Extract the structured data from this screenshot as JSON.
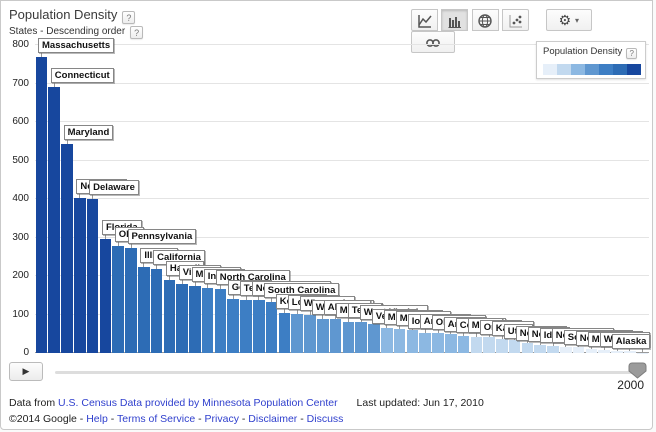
{
  "ui": {
    "help": "?"
  },
  "header": {
    "title": "Population Density",
    "subtitle": "States - Descending order"
  },
  "toolbar": {
    "chart_type_buttons": [
      {
        "id": "line-chart",
        "active": false
      },
      {
        "id": "bar-chart",
        "active": true
      },
      {
        "id": "map-chart",
        "active": false
      },
      {
        "id": "scatter-chart",
        "active": false
      }
    ],
    "gear_icon": "⚙",
    "caret_icon": "▾",
    "link_icon": "chain"
  },
  "legend": {
    "title": "Population Density",
    "colors": [
      "#e6eff9",
      "#c2d9ef",
      "#8cb8e2",
      "#5f97d0",
      "#3d7ec4",
      "#2d6cb5",
      "#17479e"
    ]
  },
  "chart_data": {
    "type": "bar",
    "title": "Population Density",
    "subtitle": "States - Descending order",
    "year": "2000",
    "xlabel": "",
    "ylabel": "",
    "ylim": [
      0,
      800
    ],
    "yticks": [
      0,
      100,
      200,
      300,
      400,
      500,
      600,
      700,
      800
    ],
    "grid": true,
    "legend_position": "top-right",
    "bars": [
      {
        "state": "Massachusetts",
        "value": 770,
        "color": "#17479e"
      },
      {
        "state": "Connecticut",
        "value": 690,
        "color": "#17479e"
      },
      {
        "state": "Maryland",
        "value": 542,
        "color": "#17479e"
      },
      {
        "state": "New York",
        "value": 402,
        "color": "#17479e"
      },
      {
        "state": "Delaware",
        "value": 401,
        "color": "#17479e"
      },
      {
        "state": "Florida",
        "value": 296,
        "color": "#17479e"
      },
      {
        "state": "Ohio",
        "value": 277,
        "color": "#2d6cb5"
      },
      {
        "state": "Pennsylvania",
        "value": 274,
        "color": "#2d6cb5"
      },
      {
        "state": "Illinois",
        "value": 223,
        "color": "#2d6cb5"
      },
      {
        "state": "California",
        "value": 217,
        "color": "#2d6cb5"
      },
      {
        "state": "Hawaii",
        "value": 189,
        "color": "#2d6cb5"
      },
      {
        "state": "Virginia",
        "value": 179,
        "color": "#2d6cb5"
      },
      {
        "state": "Michigan",
        "value": 175,
        "color": "#2d6cb5"
      },
      {
        "state": "Indiana",
        "value": 170,
        "color": "#3d7ec4"
      },
      {
        "state": "North Carolina",
        "value": 165,
        "color": "#3d7ec4"
      },
      {
        "state": "Georgia",
        "value": 141,
        "color": "#3d7ec4"
      },
      {
        "state": "Tennessee",
        "value": 138,
        "color": "#3d7ec4"
      },
      {
        "state": "New Hampshire",
        "value": 137,
        "color": "#3d7ec4"
      },
      {
        "state": "South Carolina",
        "value": 133,
        "color": "#3d7ec4"
      },
      {
        "state": "Kentucky",
        "value": 103,
        "color": "#3d7ec4"
      },
      {
        "state": "Louisiana",
        "value": 102,
        "color": "#5f97d0"
      },
      {
        "state": "Wisconsin",
        "value": 99,
        "color": "#5f97d0"
      },
      {
        "state": "Washington",
        "value": 89,
        "color": "#5f97d0"
      },
      {
        "state": "Alabama",
        "value": 88,
        "color": "#5f97d0"
      },
      {
        "state": "Missouri",
        "value": 81,
        "color": "#5f97d0"
      },
      {
        "state": "Texas",
        "value": 80,
        "color": "#5f97d0"
      },
      {
        "state": "West Virginia",
        "value": 75,
        "color": "#5f97d0"
      },
      {
        "state": "Vermont",
        "value": 66,
        "color": "#8cb8e2"
      },
      {
        "state": "Mississippi",
        "value": 62,
        "color": "#8cb8e2"
      },
      {
        "state": "Minnesota",
        "value": 61,
        "color": "#8cb8e2"
      },
      {
        "state": "Iowa",
        "value": 52,
        "color": "#8cb8e2"
      },
      {
        "state": "Arkansas",
        "value": 51,
        "color": "#8cb8e2"
      },
      {
        "state": "Oklahoma",
        "value": 50,
        "color": "#8cb8e2"
      },
      {
        "state": "Arizona",
        "value": 45,
        "color": "#8cb8e2"
      },
      {
        "state": "Colorado",
        "value": 42,
        "color": "#c2d9ef"
      },
      {
        "state": "Maine",
        "value": 41,
        "color": "#c2d9ef"
      },
      {
        "state": "Oregon",
        "value": 36,
        "color": "#c2d9ef"
      },
      {
        "state": "Kansas",
        "value": 33,
        "color": "#c2d9ef"
      },
      {
        "state": "Utah",
        "value": 27,
        "color": "#c2d9ef"
      },
      {
        "state": "Nebraska",
        "value": 22,
        "color": "#c2d9ef"
      },
      {
        "state": "Nevada",
        "value": 18,
        "color": "#c2d9ef"
      },
      {
        "state": "Idaho",
        "value": 16,
        "color": "#e6eff9"
      },
      {
        "state": "New Mexico",
        "value": 15,
        "color": "#e6eff9"
      },
      {
        "state": "South Dakota",
        "value": 10,
        "color": "#e6eff9"
      },
      {
        "state": "North Dakota",
        "value": 9,
        "color": "#e6eff9"
      },
      {
        "state": "Montana",
        "value": 6,
        "color": "#e6eff9"
      },
      {
        "state": "Wyoming",
        "value": 5,
        "color": "#e6eff9"
      },
      {
        "state": "Alaska",
        "value": 1,
        "color": "#e6eff9"
      }
    ]
  },
  "timeline": {
    "play_icon": "▶",
    "year": "2000"
  },
  "footer": {
    "data_from_prefix": "Data from",
    "source_link": "U.S. Census Data provided by Minnesota Population Center",
    "last_updated": "Last updated: Jun 17, 2010",
    "copyright": "©2014 Google",
    "separator": " - ",
    "links": [
      "Help",
      "Terms of Service",
      "Privacy",
      "Disclaimer",
      "Discuss"
    ]
  }
}
